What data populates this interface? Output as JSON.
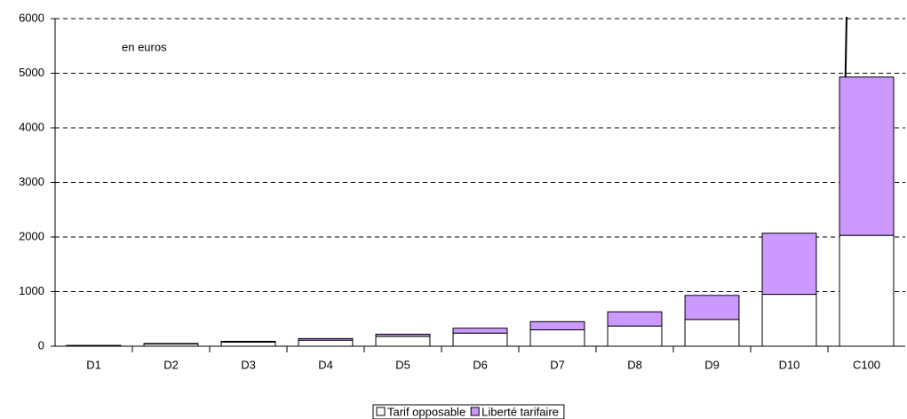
{
  "chart_data": {
    "type": "stacked_bar",
    "annotation": "en euros",
    "categories": [
      "D1",
      "D2",
      "D3",
      "D4",
      "D5",
      "D6",
      "D7",
      "D8",
      "D9",
      "D10",
      "C100"
    ],
    "series": [
      {
        "name": "Tarif opposable",
        "color": "#ffffff",
        "values": [
          10,
          40,
          75,
          110,
          180,
          240,
          300,
          370,
          490,
          950,
          2030
        ]
      },
      {
        "name": "Liberté tarifaire",
        "color": "#cc99ff",
        "values": [
          5,
          10,
          15,
          30,
          40,
          90,
          150,
          260,
          440,
          1120,
          2900
        ]
      }
    ],
    "ylim": [
      0,
      6000
    ],
    "yticks": [
      0,
      1000,
      2000,
      3000,
      4000,
      5000,
      6000
    ],
    "grid": true,
    "legend": "bottom"
  }
}
